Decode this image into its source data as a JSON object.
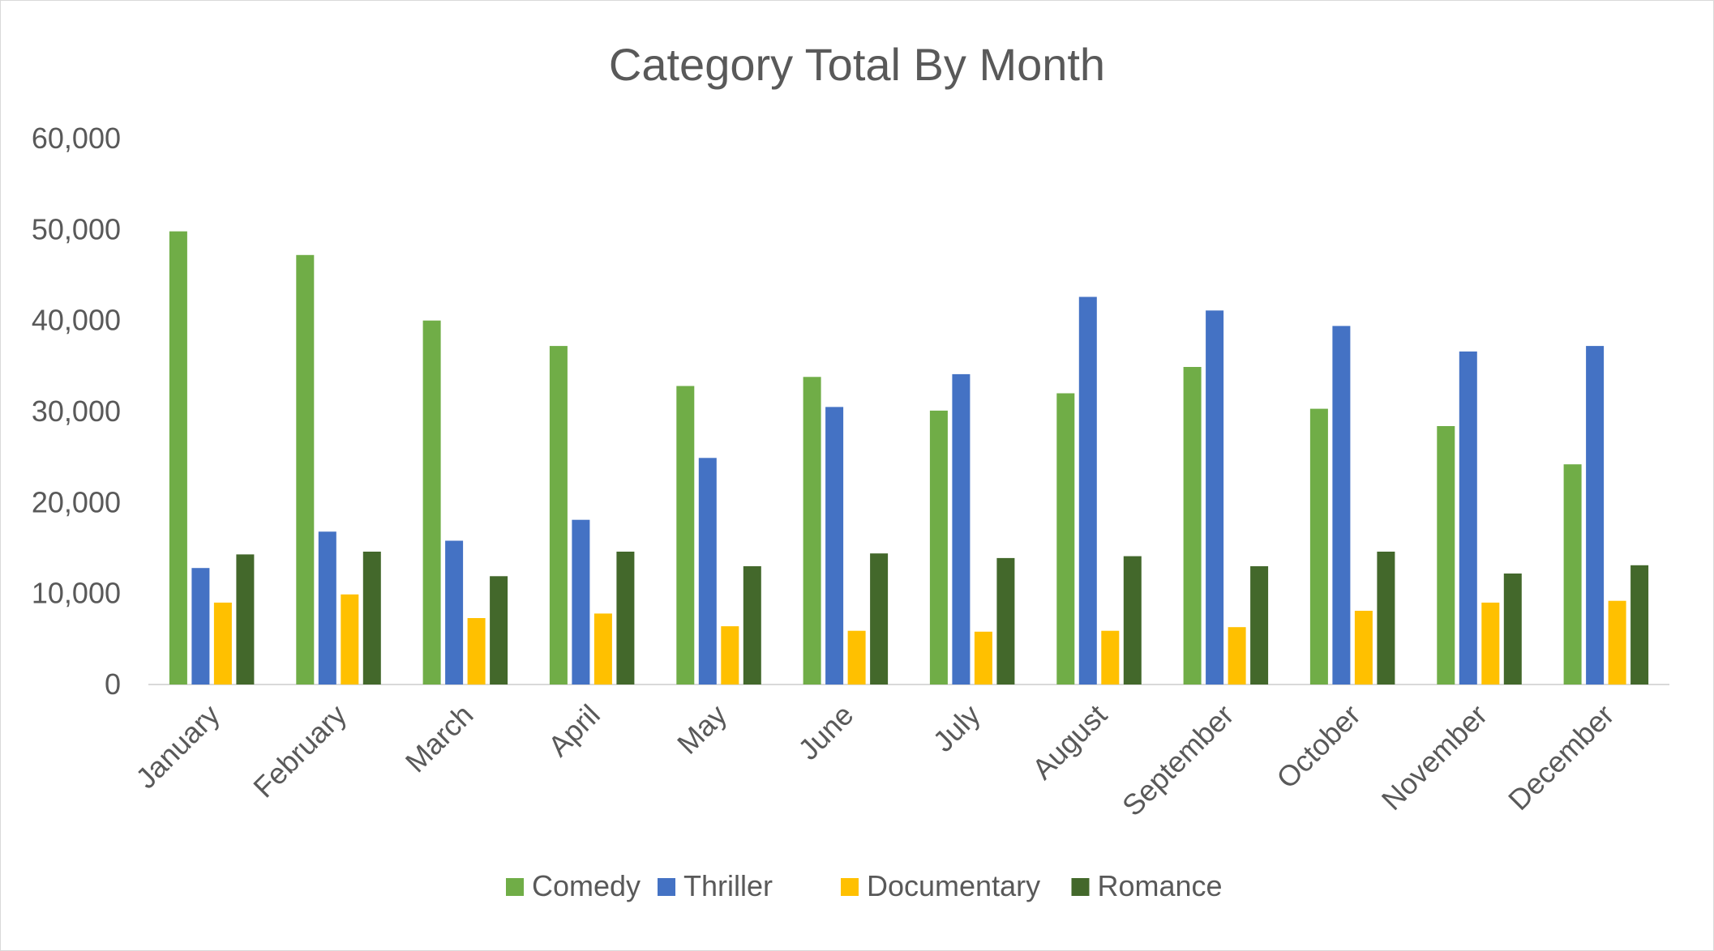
{
  "chart_data": {
    "type": "bar",
    "title": "Category Total By Month",
    "xlabel": "",
    "ylabel": "",
    "ylim": [
      0,
      60000
    ],
    "yticks": [
      0,
      10000,
      20000,
      30000,
      40000,
      50000,
      60000
    ],
    "ytick_labels": [
      "0",
      "10,000",
      "20,000",
      "30,000",
      "40,000",
      "50,000",
      "60,000"
    ],
    "grid": false,
    "legend_position": "bottom",
    "categories": [
      "January",
      "February",
      "March",
      "April",
      "May",
      "June",
      "July",
      "August",
      "September",
      "October",
      "November",
      "December"
    ],
    "series": [
      {
        "name": "Comedy",
        "color": "#70ad47",
        "values": [
          49800,
          47200,
          40000,
          37200,
          32800,
          33800,
          30100,
          32000,
          34900,
          30300,
          28400,
          24200
        ]
      },
      {
        "name": "Thriller",
        "color": "#4472c4",
        "values": [
          12800,
          16800,
          15800,
          18100,
          24900,
          30500,
          34100,
          42600,
          41100,
          39400,
          36600,
          37200
        ]
      },
      {
        "name": "Documentary",
        "color": "#ffc000",
        "values": [
          9000,
          9900,
          7300,
          7800,
          6400,
          5900,
          5800,
          5900,
          6300,
          8100,
          9000,
          9200
        ]
      },
      {
        "name": "Romance",
        "color": "#43682b",
        "values": [
          14300,
          14600,
          11900,
          14600,
          13000,
          14400,
          13900,
          14100,
          13000,
          14600,
          12200,
          13100
        ]
      }
    ]
  }
}
